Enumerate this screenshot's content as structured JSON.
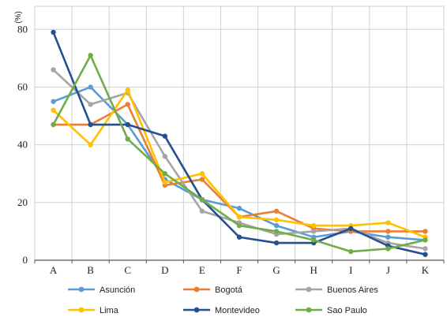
{
  "chart_data": {
    "type": "line",
    "title": "",
    "xlabel": "",
    "ylabel": "(%)",
    "ylim": [
      0,
      80
    ],
    "yticks": [
      0,
      20,
      40,
      60,
      80
    ],
    "grid": true,
    "legend_position": "bottom",
    "categories": [
      "A",
      "B",
      "C",
      "D",
      "E",
      "F",
      "G",
      "H",
      "I",
      "J",
      "K"
    ],
    "series": [
      {
        "name": "Asunción",
        "color": "#5b9bd5",
        "values": [
          55,
          60,
          47,
          28,
          21,
          18,
          12,
          8,
          10,
          8,
          7
        ]
      },
      {
        "name": "Bogotá",
        "color": "#ed7d31",
        "values": [
          47,
          47,
          54,
          26,
          28,
          15,
          17,
          11,
          10,
          10,
          10
        ]
      },
      {
        "name": "Buenos Aires",
        "color": "#a5a5a5",
        "values": [
          66,
          54,
          58,
          36,
          17,
          13,
          9,
          10,
          11,
          6,
          4
        ]
      },
      {
        "name": "Lima",
        "color": "#ffc000",
        "values": [
          52,
          40,
          59,
          27,
          30,
          15,
          14,
          12,
          12,
          13,
          8
        ]
      },
      {
        "name": "Montevideo",
        "color": "#264f8f",
        "values": [
          79,
          47,
          47,
          43,
          21,
          8,
          6,
          6,
          11,
          5,
          2
        ]
      },
      {
        "name": "Sao Paulo",
        "color": "#70ad47",
        "values": [
          47,
          71,
          42,
          30,
          21,
          12,
          10,
          7,
          3,
          4,
          7
        ]
      }
    ]
  }
}
